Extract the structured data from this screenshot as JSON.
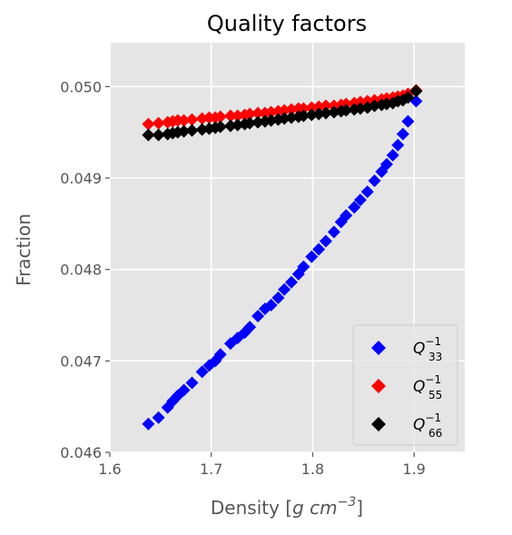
{
  "chart_data": {
    "type": "scatter",
    "title": "Quality factors",
    "xlabel": "Density [g cm⁻³]",
    "xlabel_parts": {
      "prefix": "Density [",
      "var": "g cm",
      "sup": "−3",
      "suffix": "]"
    },
    "ylabel": "Fraction",
    "xlim": [
      1.6,
      1.95
    ],
    "ylim": [
      0.046,
      0.05048
    ],
    "xticks": [
      1.6,
      1.7,
      1.8,
      1.9
    ],
    "xtick_labels": [
      "1.6",
      "1.7",
      "1.8",
      "1.9"
    ],
    "yticks": [
      0.046,
      0.047,
      0.048,
      0.049,
      0.05
    ],
    "ytick_labels": [
      "0.046",
      "0.047",
      "0.048",
      "0.049",
      "0.050"
    ],
    "grid": true,
    "legend_position": "lower-right",
    "marker": "diamond",
    "x": [
      1.638,
      1.648,
      1.657,
      1.662,
      1.667,
      1.673,
      1.681,
      1.691,
      1.698,
      1.704,
      1.709,
      1.719,
      1.726,
      1.733,
      1.738,
      1.746,
      1.753,
      1.759,
      1.766,
      1.772,
      1.779,
      1.786,
      1.791,
      1.799,
      1.806,
      1.813,
      1.821,
      1.828,
      1.833,
      1.841,
      1.847,
      1.854,
      1.861,
      1.868,
      1.873,
      1.879,
      1.884,
      1.889,
      1.894,
      1.902
    ],
    "series": [
      {
        "name_main": "Q",
        "name_sup": "−1",
        "name_sub": "33",
        "color": "#0000ff",
        "values": [
          0.04631,
          0.04638,
          0.04649,
          0.04656,
          0.04662,
          0.04668,
          0.04676,
          0.04688,
          0.04695,
          0.047,
          0.04707,
          0.04719,
          0.04725,
          0.04731,
          0.04737,
          0.04749,
          0.04757,
          0.04761,
          0.04769,
          0.04778,
          0.04786,
          0.04795,
          0.04803,
          0.04814,
          0.04822,
          0.04831,
          0.04841,
          0.04852,
          0.04859,
          0.04868,
          0.04876,
          0.04885,
          0.04897,
          0.04907,
          0.04915,
          0.04925,
          0.04936,
          0.04948,
          0.04962,
          0.04984
        ]
      },
      {
        "name_main": "Q",
        "name_sup": "−1",
        "name_sub": "55",
        "color": "#ff0000",
        "values": [
          0.04959,
          0.0496,
          0.04961,
          0.04962,
          0.04963,
          0.04963,
          0.04964,
          0.04965,
          0.04966,
          0.04966,
          0.04967,
          0.04968,
          0.04968,
          0.04969,
          0.0497,
          0.04971,
          0.04971,
          0.04972,
          0.04973,
          0.04974,
          0.04975,
          0.04976,
          0.04976,
          0.04977,
          0.04978,
          0.04979,
          0.04979,
          0.0498,
          0.04981,
          0.04982,
          0.04983,
          0.04984,
          0.04985,
          0.04986,
          0.04987,
          0.04988,
          0.04989,
          0.0499,
          0.04992,
          0.04996
        ]
      },
      {
        "name_main": "Q",
        "name_sup": "−1",
        "name_sub": "66",
        "color": "#000000",
        "values": [
          0.04947,
          0.04947,
          0.04948,
          0.04949,
          0.0495,
          0.04951,
          0.04952,
          0.04953,
          0.04954,
          0.04955,
          0.04956,
          0.04957,
          0.04958,
          0.04959,
          0.0496,
          0.04961,
          0.04962,
          0.04963,
          0.04964,
          0.04965,
          0.04966,
          0.04967,
          0.04968,
          0.04969,
          0.0497,
          0.04971,
          0.04972,
          0.04973,
          0.04974,
          0.04975,
          0.04976,
          0.04977,
          0.04979,
          0.0498,
          0.04981,
          0.04982,
          0.04984,
          0.04985,
          0.04988,
          0.04995
        ]
      }
    ]
  }
}
